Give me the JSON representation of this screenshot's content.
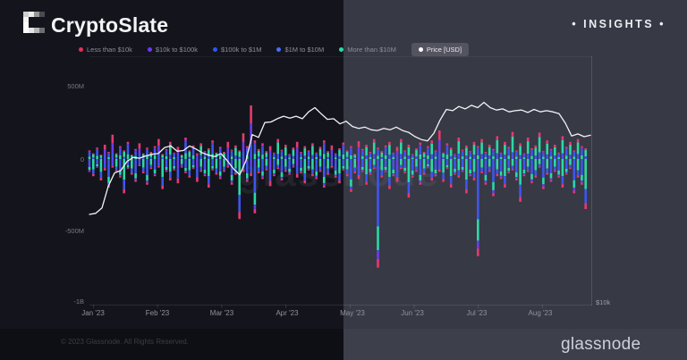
{
  "header": {
    "brand": "CryptoSlate",
    "insights_label": "• INSIGHTS •",
    "logo_pixels": [
      [
        "#cfcfcf",
        "#ececec",
        "#979797",
        "#4a4a50"
      ],
      [
        "#f4f4f4",
        "",
        "",
        ""
      ],
      [
        "#ffffff",
        "",
        "",
        ""
      ],
      [
        "#fbfbfb",
        "#e6e6e6",
        "#b5b5b5",
        "#6e6e74"
      ]
    ]
  },
  "legend": {
    "items": [
      {
        "label": "Less than $10k",
        "color": "#e0315c"
      },
      {
        "label": "$10k to $100k",
        "color": "#6b3bf5"
      },
      {
        "label": "$100k to $1M",
        "color": "#2f55f4"
      },
      {
        "label": "$1M to $10M",
        "color": "#4a6cf7"
      },
      {
        "label": "More than $10M",
        "color": "#2bd9a6"
      }
    ],
    "active_item": {
      "label": "Price [USD]",
      "color": "#ffffff"
    }
  },
  "watermark": "glassnode",
  "chart_data": {
    "type": "bar+line",
    "bar_series_legend": [
      "Less than $10k",
      "$10k to $100k",
      "$100k to $1M",
      "$1M to $10M",
      "More than $10M"
    ],
    "left_axis_ticks": [
      "500M",
      "0",
      "-500M",
      "-1B"
    ],
    "left_axis_range_m": [
      -1000,
      600
    ],
    "right_axis_ticks": [
      "$10k"
    ],
    "right_axis_scale": "log",
    "x_ticks": [
      "Jan '23",
      "Feb '23",
      "Mar '23",
      "Apr '23",
      "May '23",
      "Jun '23",
      "Jul '23",
      "Aug '23"
    ],
    "grid": "off",
    "legend_position": "top",
    "colors": {
      "blue": "#3e56ee",
      "green": "#2bd9a6",
      "purple": "#6a3df0",
      "pink": "#e6396f",
      "price": "#f2f3f6"
    },
    "price_series": {
      "name": "Price [USD]",
      "unit": "USD thousands",
      "values": [
        16.5,
        16.6,
        17.1,
        19.3,
        20.8,
        21.1,
        22.2,
        22.7,
        22.6,
        22.9,
        23.1,
        23.2,
        24.0,
        24.2,
        23.5,
        23.6,
        24.2,
        23.8,
        23.3,
        23.0,
        22.8,
        23.2,
        22.3,
        21.3,
        20.6,
        22.3,
        25.8,
        25.4,
        27.6,
        27.7,
        28.2,
        28.6,
        28.3,
        28.6,
        28.2,
        29.3,
        30.0,
        29.0,
        28.1,
        28.2,
        27.4,
        27.8,
        27.0,
        26.7,
        26.9,
        26.5,
        26.4,
        26.7,
        26.5,
        26.9,
        26.4,
        26.1,
        25.5,
        25.1,
        24.9,
        26.0,
        28.0,
        29.7,
        29.5,
        30.2,
        29.8,
        30.4,
        30.0,
        30.9,
        30.0,
        29.6,
        29.8,
        29.3,
        29.5,
        29.6,
        29.2,
        29.7,
        29.3,
        29.5,
        29.3,
        29.0,
        27.5,
        25.6,
        25.9,
        25.5,
        25.7
      ]
    },
    "bars": {
      "unit": "USD millions",
      "encoding": "[up_total_M, down_total_M, palette_style]",
      "values": [
        [
          60,
          90,
          0
        ],
        [
          40,
          120,
          1
        ],
        [
          80,
          60,
          0
        ],
        [
          30,
          150,
          1
        ],
        [
          100,
          80,
          2
        ],
        [
          50,
          200,
          0
        ],
        [
          170,
          60,
          2
        ],
        [
          40,
          90,
          1
        ],
        [
          90,
          130,
          0
        ],
        [
          60,
          240,
          1
        ],
        [
          120,
          70,
          0
        ],
        [
          30,
          110,
          1
        ],
        [
          70,
          160,
          0
        ],
        [
          110,
          50,
          2
        ],
        [
          40,
          100,
          1
        ],
        [
          80,
          180,
          0
        ],
        [
          50,
          70,
          1
        ],
        [
          90,
          120,
          0
        ],
        [
          140,
          60,
          2
        ],
        [
          35,
          210,
          1
        ],
        [
          70,
          90,
          0
        ],
        [
          120,
          150,
          1
        ],
        [
          45,
          80,
          0
        ],
        [
          85,
          170,
          2
        ],
        [
          30,
          60,
          1
        ],
        [
          150,
          100,
          0
        ],
        [
          60,
          130,
          1
        ],
        [
          95,
          70,
          0
        ],
        [
          40,
          160,
          2
        ],
        [
          110,
          90,
          1
        ],
        [
          55,
          120,
          0
        ],
        [
          75,
          200,
          1
        ],
        [
          130,
          80,
          0
        ],
        [
          45,
          110,
          1
        ],
        [
          85,
          140,
          0
        ],
        [
          50,
          90,
          1
        ],
        [
          120,
          60,
          2
        ],
        [
          65,
          180,
          0
        ],
        [
          95,
          110,
          1
        ],
        [
          60,
          420,
          1
        ],
        [
          180,
          90,
          2
        ],
        [
          90,
          160,
          0
        ],
        [
          375,
          120,
          2
        ],
        [
          130,
          380,
          0
        ],
        [
          70,
          100,
          1
        ],
        [
          110,
          140,
          0
        ],
        [
          55,
          80,
          1
        ],
        [
          90,
          190,
          2
        ],
        [
          45,
          120,
          0
        ],
        [
          140,
          70,
          1
        ],
        [
          65,
          150,
          0
        ],
        [
          100,
          90,
          1
        ],
        [
          35,
          110,
          0
        ],
        [
          80,
          60,
          1
        ],
        [
          120,
          130,
          2
        ],
        [
          50,
          100,
          0
        ],
        [
          90,
          170,
          1
        ],
        [
          60,
          80,
          0
        ],
        [
          110,
          120,
          1
        ],
        [
          45,
          140,
          0
        ],
        [
          85,
          90,
          1
        ],
        [
          130,
          200,
          0
        ],
        [
          55,
          110,
          1
        ],
        [
          95,
          60,
          2
        ],
        [
          40,
          130,
          0
        ],
        [
          75,
          170,
          1
        ],
        [
          115,
          80,
          0
        ],
        [
          60,
          120,
          1
        ],
        [
          90,
          230,
          0
        ],
        [
          35,
          100,
          1
        ],
        [
          125,
          140,
          2
        ],
        [
          70,
          90,
          0
        ],
        [
          100,
          180,
          1
        ],
        [
          50,
          110,
          0
        ],
        [
          140,
          70,
          1
        ],
        [
          80,
          760,
          0
        ],
        [
          55,
          130,
          1
        ],
        [
          95,
          90,
          0
        ],
        [
          120,
          210,
          1
        ],
        [
          45,
          120,
          0
        ],
        [
          85,
          160,
          2
        ],
        [
          140,
          70,
          1
        ],
        [
          60,
          100,
          0
        ],
        [
          100,
          270,
          1
        ],
        [
          35,
          130,
          0
        ],
        [
          75,
          90,
          1
        ],
        [
          115,
          180,
          0
        ],
        [
          50,
          110,
          1
        ],
        [
          90,
          60,
          0
        ],
        [
          130,
          150,
          1
        ],
        [
          60,
          120,
          0
        ],
        [
          200,
          90,
          2
        ],
        [
          45,
          160,
          1
        ],
        [
          110,
          70,
          0
        ],
        [
          80,
          200,
          1
        ],
        [
          35,
          110,
          0
        ],
        [
          150,
          130,
          1
        ],
        [
          65,
          90,
          0
        ],
        [
          95,
          240,
          1
        ],
        [
          55,
          120,
          0
        ],
        [
          120,
          150,
          1
        ],
        [
          90,
          680,
          0
        ],
        [
          140,
          100,
          1
        ],
        [
          50,
          180,
          0
        ],
        [
          100,
          90,
          1
        ],
        [
          70,
          260,
          0
        ],
        [
          160,
          120,
          1
        ],
        [
          45,
          140,
          0
        ],
        [
          120,
          200,
          1
        ],
        [
          85,
          100,
          0
        ],
        [
          190,
          80,
          1
        ],
        [
          60,
          150,
          0
        ],
        [
          110,
          300,
          1
        ],
        [
          40,
          120,
          0
        ],
        [
          150,
          90,
          1
        ],
        [
          75,
          170,
          0
        ],
        [
          95,
          130,
          1
        ],
        [
          185,
          60,
          1
        ],
        [
          55,
          210,
          0
        ],
        [
          130,
          110,
          1
        ],
        [
          70,
          160,
          0
        ],
        [
          100,
          90,
          1
        ],
        [
          45,
          130,
          0
        ],
        [
          160,
          200,
          1
        ],
        [
          85,
          110,
          0
        ],
        [
          120,
          70,
          1
        ],
        [
          60,
          240,
          0
        ],
        [
          140,
          130,
          1
        ],
        [
          90,
          180,
          0
        ],
        [
          75,
          350,
          1
        ]
      ]
    }
  },
  "footer": {
    "copyright": "© 2023 Glassnode. All Rights Reserved.",
    "brand": "glassnode"
  }
}
